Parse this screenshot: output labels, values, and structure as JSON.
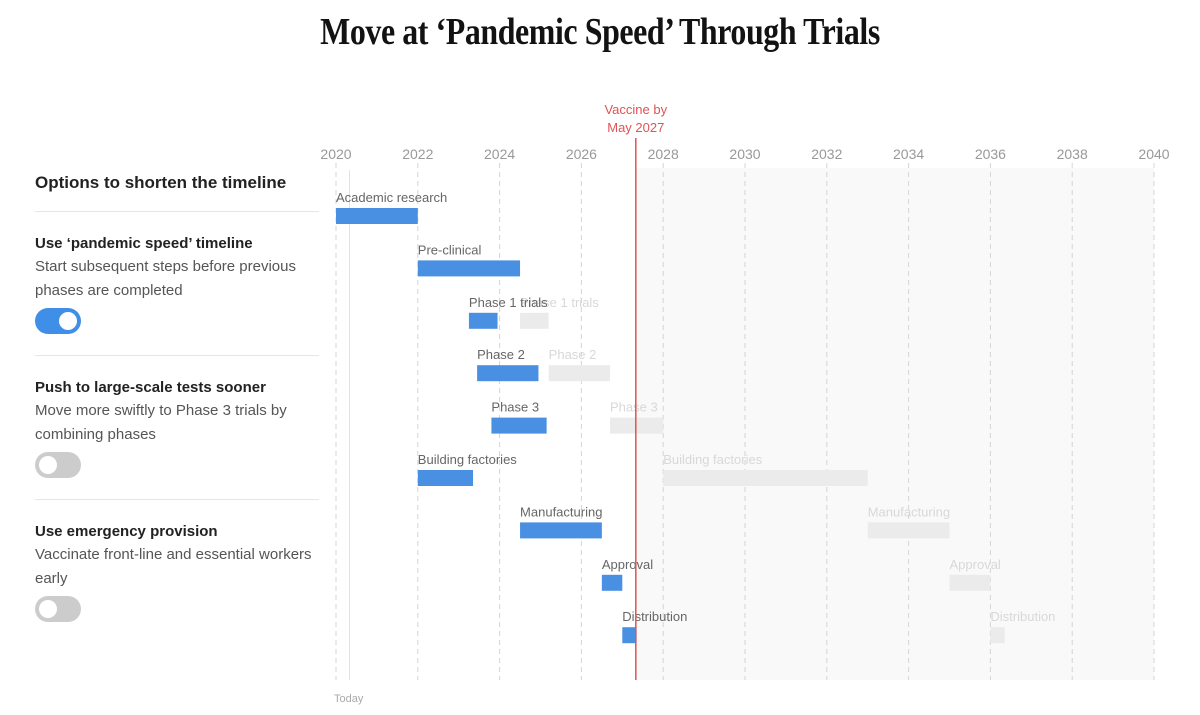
{
  "title": "Move at ‘Pandemic Speed’ Through Trials",
  "sidebar": {
    "heading": "Options to shorten the timeline",
    "options": [
      {
        "title": "Use ‘pandemic speed’ timeline",
        "description": "Start subsequent steps before previous phases are completed",
        "enabled": true
      },
      {
        "title": "Push to large-scale tests sooner",
        "description": "Move more swiftly to Phase 3 trials by combining phases",
        "enabled": false
      },
      {
        "title": "Use emergency provision",
        "description": "Vaccinate front-line and essential workers early",
        "enabled": false
      }
    ]
  },
  "chart_data": {
    "type": "gantt",
    "xlim": [
      2020,
      2040
    ],
    "ticks": [
      2020,
      2022,
      2024,
      2026,
      2028,
      2030,
      2032,
      2034,
      2036,
      2038,
      2040
    ],
    "today_label": "Today",
    "today": 2020.33,
    "marker": {
      "label_line1": "Vaccine by",
      "label_line2": "May 2027",
      "value": 2027.33
    },
    "colors": {
      "accelerated": "#4a90e2",
      "original": "#ebebeb",
      "marker": "#e05353"
    },
    "tasks": [
      {
        "name": "Academic research",
        "accelerated": [
          2020,
          2022
        ],
        "original": null
      },
      {
        "name": "Pre-clinical",
        "accelerated": [
          2022,
          2024.5
        ],
        "original": null
      },
      {
        "name": "Phase 1 trials",
        "accelerated": [
          2023.25,
          2023.95
        ],
        "original": [
          2024.5,
          2025.2
        ]
      },
      {
        "name": "Phase 2",
        "accelerated": [
          2023.45,
          2024.95
        ],
        "original": [
          2025.2,
          2026.7
        ]
      },
      {
        "name": "Phase 3",
        "accelerated": [
          2023.8,
          2025.15
        ],
        "original": [
          2026.7,
          2028
        ]
      },
      {
        "name": "Building factories",
        "accelerated": [
          2022,
          2023.35
        ],
        "original": [
          2028,
          2033
        ]
      },
      {
        "name": "Manufacturing",
        "accelerated": [
          2024.5,
          2026.5
        ],
        "original": [
          2033,
          2035
        ]
      },
      {
        "name": "Approval",
        "accelerated": [
          2026.5,
          2027
        ],
        "original": [
          2035,
          2036
        ]
      },
      {
        "name": "Distribution",
        "accelerated": [
          2027,
          2027.35
        ],
        "original": [
          2036,
          2036.35
        ]
      }
    ]
  }
}
